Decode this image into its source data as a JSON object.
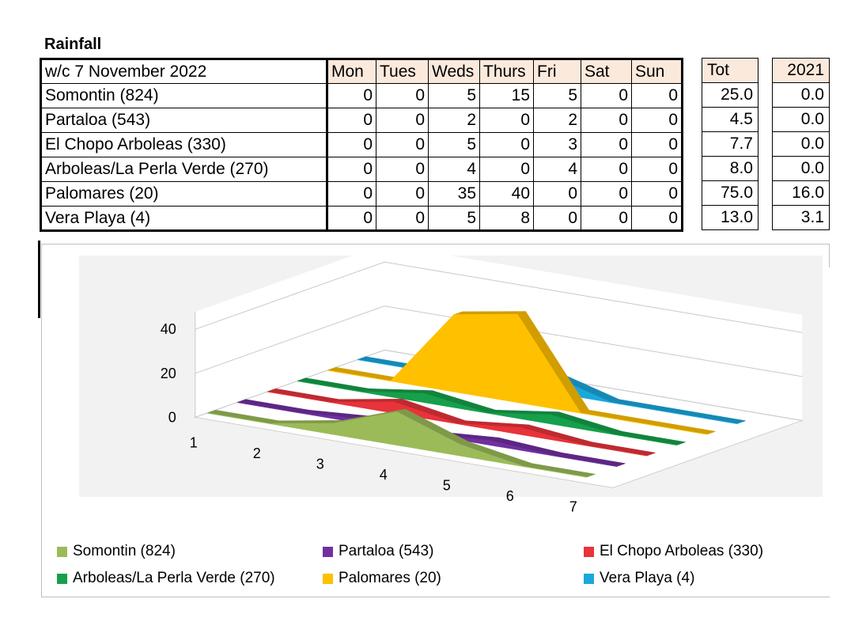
{
  "title": "Rainfall",
  "table": {
    "week_label": "w/c  7 November 2022",
    "days": [
      "Mon",
      "Tues",
      "Weds",
      "Thurs",
      "Fri",
      "Sat",
      "Sun"
    ],
    "tot_header": "Tot",
    "year_header": "2021",
    "rows": [
      {
        "name": "Somontin (824)",
        "values": [
          "0",
          "0",
          "5",
          "15",
          "5",
          "0",
          "0"
        ],
        "tot": "25.0",
        "prev": "0.0"
      },
      {
        "name": "Partaloa (543)",
        "values": [
          "0",
          "0",
          "2",
          "0",
          "2",
          "0",
          "0"
        ],
        "tot": "4.5",
        "prev": "0.0"
      },
      {
        "name": "El Chopo Arboleas (330)",
        "values": [
          "0",
          "0",
          "5",
          "0",
          "3",
          "0",
          "0"
        ],
        "tot": "7.7",
        "prev": "0.0"
      },
      {
        "name": "Arboleas/La Perla Verde (270)",
        "values": [
          "0",
          "0",
          "4",
          "0",
          "4",
          "0",
          "0"
        ],
        "tot": "8.0",
        "prev": "0.0"
      },
      {
        "name": "Palomares (20)",
        "values": [
          "0",
          "0",
          "35",
          "40",
          "0",
          "0",
          "0"
        ],
        "tot": "75.0",
        "prev": "16.0"
      },
      {
        "name": "Vera Playa (4)",
        "values": [
          "0",
          "0",
          "5",
          "8",
          "0",
          "0",
          "0"
        ],
        "tot": "13.0",
        "prev": "3.1"
      }
    ]
  },
  "chart_data": {
    "type": "area",
    "variant": "3d",
    "x": [
      1,
      2,
      3,
      4,
      5,
      6,
      7
    ],
    "x_tick_labels": [
      "1",
      "2",
      "3",
      "4",
      "5",
      "6",
      "7"
    ],
    "y_tick_labels": [
      "0",
      "20",
      "40"
    ],
    "ylim": [
      0,
      40
    ],
    "series": [
      {
        "name": "Somontin (824)",
        "values": [
          0,
          0,
          5,
          15,
          5,
          0,
          0
        ],
        "color": "#9bbb59"
      },
      {
        "name": "Partaloa (543)",
        "values": [
          0,
          0,
          2,
          0,
          2,
          0,
          0
        ],
        "color": "#7030a0"
      },
      {
        "name": "El Chopo Arboleas (330)",
        "values": [
          0,
          0,
          5,
          0,
          3,
          0,
          0
        ],
        "color": "#e8333a"
      },
      {
        "name": "Arboleas/La Perla Verde (270)",
        "values": [
          0,
          0,
          4,
          0,
          4,
          0,
          0
        ],
        "color": "#16a04b"
      },
      {
        "name": "Palomares (20)",
        "values": [
          0,
          0,
          35,
          40,
          0,
          0,
          0
        ],
        "color": "#ffc000"
      },
      {
        "name": "Vera Playa (4)",
        "values": [
          0,
          0,
          5,
          8,
          0,
          0,
          0
        ],
        "color": "#1aa7dc"
      }
    ],
    "legend_position": "bottom",
    "grid": true
  }
}
